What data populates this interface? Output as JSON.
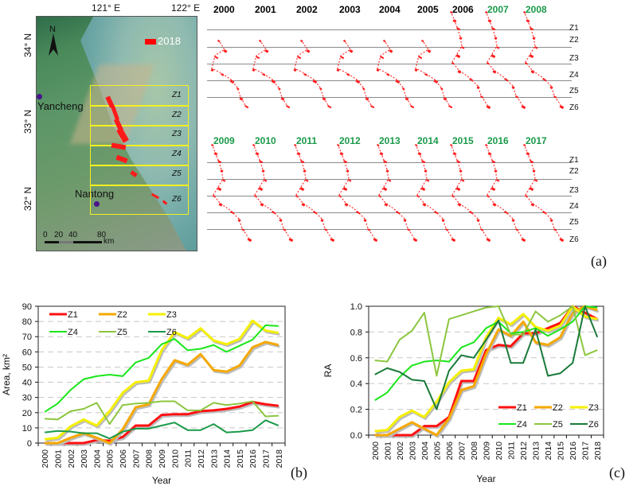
{
  "panel_a": {
    "tag": "(a)",
    "map": {
      "lon_labels": [
        "121° E",
        "122° E"
      ],
      "lat_labels": [
        "34° N",
        "33° N",
        "32° N"
      ],
      "north_arrow": "N",
      "legend_label": "2018",
      "legend_color": "#ff0000",
      "cities": [
        "Yancheng",
        "Nantong"
      ],
      "zones": [
        "Z1",
        "Z2",
        "Z3",
        "Z4",
        "Z5",
        "Z6"
      ],
      "scale_ticks": [
        "0",
        "20",
        "40",
        "80"
      ],
      "scale_unit": "km"
    },
    "years_row1": [
      {
        "label": "2000",
        "color": "#000000"
      },
      {
        "label": "2001",
        "color": "#000000"
      },
      {
        "label": "2002",
        "color": "#000000"
      },
      {
        "label": "2003",
        "color": "#000000"
      },
      {
        "label": "2004",
        "color": "#000000"
      },
      {
        "label": "2005",
        "color": "#000000"
      },
      {
        "label": "2006",
        "color": "#000000"
      },
      {
        "label": "2007",
        "color": "#1a9a4a"
      },
      {
        "label": "2008",
        "color": "#1a9a4a"
      }
    ],
    "years_row2": [
      {
        "label": "2009",
        "color": "#1a9a4a"
      },
      {
        "label": "2010",
        "color": "#1a9a4a"
      },
      {
        "label": "2011",
        "color": "#1a9a4a"
      },
      {
        "label": "2012",
        "color": "#1a9a4a"
      },
      {
        "label": "2013",
        "color": "#1a9a4a"
      },
      {
        "label": "2014",
        "color": "#1a9a4a"
      },
      {
        "label": "2015",
        "color": "#1a9a4a"
      },
      {
        "label": "2016",
        "color": "#1a9a4a"
      },
      {
        "label": "2017",
        "color": "#1a9a4a"
      }
    ],
    "zone_labels": [
      "Z1",
      "Z2",
      "Z3",
      "Z4",
      "Z5",
      "Z6"
    ]
  },
  "chart_data": [
    {
      "type": "line",
      "tag": "(b)",
      "title": "",
      "xlabel": "Year",
      "ylabel": "Area, km²",
      "ylim": [
        0,
        90
      ],
      "yticks": [
        0,
        10,
        20,
        30,
        40,
        50,
        60,
        70,
        80,
        90
      ],
      "grid": "horizontal dashed",
      "legend": "top-left",
      "x": [
        "2000",
        "2001",
        "2002",
        "2003",
        "2004",
        "2005",
        "2006",
        "2007",
        "2008",
        "2009",
        "2010",
        "2011",
        "2012",
        "2013",
        "2014",
        "2015",
        "2016",
        "2017",
        "2018"
      ],
      "series": [
        {
          "name": "Z1",
          "color": "#ff1010",
          "values": [
            0,
            0,
            0,
            0,
            2,
            1.5,
            4,
            11.5,
            11.5,
            18.5,
            19,
            19,
            21,
            21.5,
            22.5,
            24,
            27,
            25.5,
            24.5
          ]
        },
        {
          "name": "Z2",
          "color": "#f5a800",
          "values": [
            0,
            0,
            3.5,
            6.5,
            3.5,
            0,
            9,
            23.5,
            25.5,
            42,
            54.5,
            51.5,
            58.5,
            48,
            47,
            51,
            63,
            66.5,
            64.5
          ]
        },
        {
          "name": "Z3",
          "color": "#f5f000",
          "values": [
            2.5,
            3.5,
            11,
            15.5,
            11.5,
            21,
            33,
            40,
            41,
            61,
            73,
            69,
            75.5,
            67.5,
            65,
            68.5,
            80.5,
            74,
            72.5
          ]
        },
        {
          "name": "Z4",
          "color": "#19e619",
          "values": [
            20.5,
            26,
            35,
            42,
            44,
            45,
            44,
            53,
            56,
            65,
            68.5,
            61,
            62,
            64.5,
            60,
            64,
            68,
            77.5,
            77
          ]
        },
        {
          "name": "Z5",
          "color": "#8cc63f",
          "values": [
            16,
            15.5,
            21,
            22.5,
            26.5,
            12.5,
            25,
            26,
            26.5,
            27.5,
            27.5,
            21.5,
            21.5,
            26.5,
            25,
            26,
            27.5,
            17.5,
            18
          ]
        },
        {
          "name": "Z6",
          "color": "#1a9a4a",
          "values": [
            7,
            8,
            7.5,
            6.5,
            6.5,
            3,
            7.5,
            9.5,
            9.5,
            11.5,
            13.5,
            8.5,
            8.5,
            12.5,
            7,
            7.5,
            8.5,
            15,
            11.5
          ]
        }
      ]
    },
    {
      "type": "line",
      "tag": "(c)",
      "title": "",
      "xlabel": "Year",
      "ylabel": "RA",
      "ylim": [
        0,
        1.0
      ],
      "yticks": [
        0.0,
        0.2,
        0.4,
        0.6,
        0.8,
        1.0
      ],
      "grid": "horizontal dashed",
      "legend": "bottom-right",
      "x": [
        "2000",
        "2001",
        "2002",
        "2003",
        "2004",
        "2005",
        "2006",
        "2007",
        "2008",
        "2009",
        "2010",
        "2011",
        "2012",
        "2013",
        "2014",
        "2015",
        "2016",
        "2017",
        "2018"
      ],
      "series": [
        {
          "name": "Z1",
          "color": "#ff1010",
          "values": [
            0,
            0,
            0,
            0,
            0.07,
            0.07,
            0.14,
            0.42,
            0.42,
            0.66,
            0.7,
            0.69,
            0.79,
            0.79,
            0.83,
            0.87,
            1.0,
            0.95,
            0.9
          ]
        },
        {
          "name": "Z2",
          "color": "#f5a800",
          "values": [
            0,
            0,
            0.05,
            0.1,
            0.05,
            0.0,
            0.13,
            0.35,
            0.38,
            0.63,
            0.82,
            0.77,
            0.88,
            0.72,
            0.7,
            0.76,
            0.95,
            1.0,
            0.97
          ]
        },
        {
          "name": "Z3",
          "color": "#f5f000",
          "values": [
            0.03,
            0.04,
            0.14,
            0.19,
            0.14,
            0.26,
            0.41,
            0.5,
            0.51,
            0.76,
            0.91,
            0.86,
            0.94,
            0.84,
            0.81,
            0.85,
            1.0,
            0.92,
            0.9
          ]
        },
        {
          "name": "Z4",
          "color": "#19e619",
          "values": [
            0.27,
            0.33,
            0.45,
            0.54,
            0.57,
            0.58,
            0.57,
            0.68,
            0.72,
            0.83,
            0.88,
            0.79,
            0.8,
            0.83,
            0.77,
            0.82,
            0.88,
            1.0,
            0.99
          ]
        },
        {
          "name": "Z5",
          "color": "#8cc63f",
          "values": [
            0.58,
            0.57,
            0.74,
            0.81,
            0.95,
            0.46,
            0.9,
            0.93,
            0.96,
            0.99,
            1.0,
            0.78,
            0.78,
            0.96,
            0.88,
            0.93,
            1.0,
            0.62,
            0.66
          ]
        },
        {
          "name": "Z6",
          "color": "#1a7a3a",
          "values": [
            0.47,
            0.52,
            0.49,
            0.43,
            0.42,
            0.2,
            0.5,
            0.62,
            0.6,
            0.74,
            0.89,
            0.56,
            0.56,
            0.82,
            0.46,
            0.48,
            0.56,
            1.0,
            0.76
          ]
        }
      ]
    }
  ]
}
